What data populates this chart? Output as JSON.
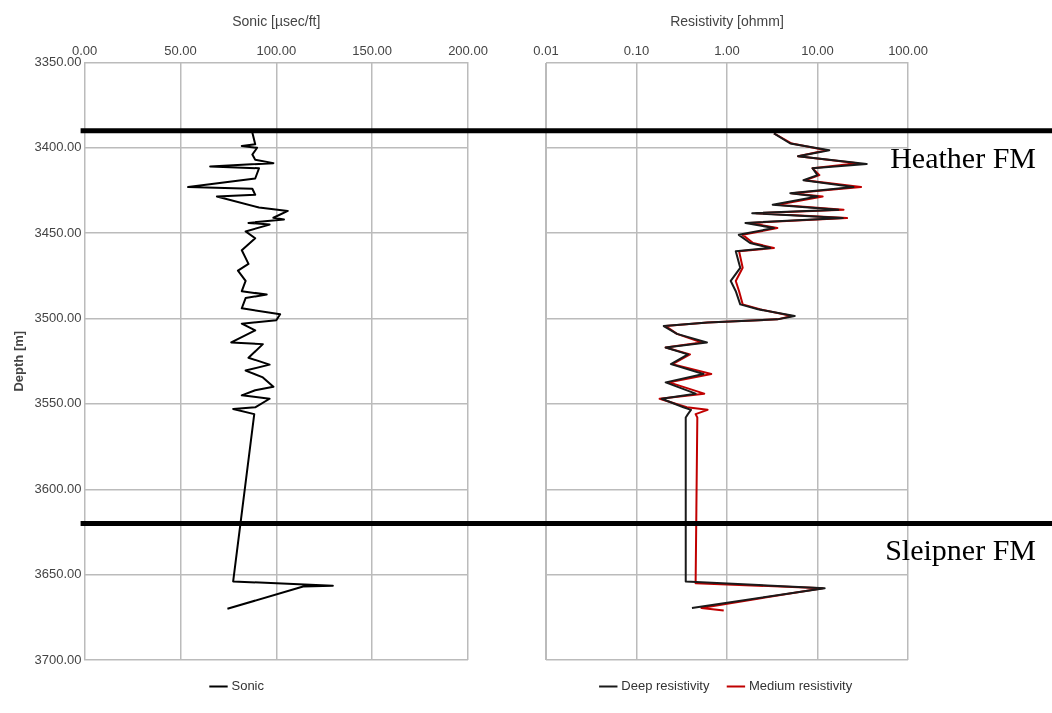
{
  "chart_data": [
    {
      "type": "line",
      "xlabel": "Sonic [µsec/ft]",
      "ylabel": "Depth [m]",
      "xlim": [
        0,
        200
      ],
      "xticks": [
        {
          "value": 0,
          "label": "0.00"
        },
        {
          "value": 50,
          "label": "50.00"
        },
        {
          "value": 100,
          "label": "100.00"
        },
        {
          "value": 150,
          "label": "150.00"
        },
        {
          "value": 200,
          "label": "200.00"
        }
      ],
      "ylim": [
        3700,
        3350
      ],
      "yticks": [
        {
          "value": 3350,
          "label": "3350.00"
        },
        {
          "value": 3400,
          "label": "3400.00"
        },
        {
          "value": 3450,
          "label": "3450.00"
        },
        {
          "value": 3500,
          "label": "3500.00"
        },
        {
          "value": 3550,
          "label": "3550.00"
        },
        {
          "value": 3600,
          "label": "3600.00"
        },
        {
          "value": 3650,
          "label": "3650.00"
        },
        {
          "value": 3700,
          "label": "3700.00"
        }
      ],
      "grid": true,
      "legend": "bottom",
      "ref_lines": [
        {
          "axis": "y",
          "value": 3390,
          "color": "#000000"
        },
        {
          "axis": "y",
          "value": 3620,
          "color": "#000000"
        }
      ],
      "series": [
        {
          "name": "Sonic",
          "color": "#000000",
          "x": [
            87.5,
            89,
            82,
            90,
            87.5,
            89,
            98.5,
            65.5,
            91,
            89,
            54,
            87.5,
            89,
            69,
            91,
            106,
            98.5,
            104,
            85.5,
            96.5,
            84,
            89,
            82,
            85.5,
            80,
            84,
            82,
            95,
            84,
            82,
            102,
            100,
            82,
            89,
            76.5,
            93,
            85.5,
            96.5,
            84,
            93,
            98.5,
            89,
            82,
            96.5,
            89,
            77.5,
            88.5,
            77.5,
            129.5,
            114,
            74.5
          ],
          "values": [
            3391,
            3398,
            3399,
            3400,
            3404,
            3407,
            3409,
            3411,
            3412,
            3418,
            3423,
            3424,
            3427.5,
            3428.5,
            3435,
            3437,
            3441,
            3442,
            3444,
            3445,
            3449,
            3453,
            3460,
            3468,
            3472,
            3478,
            3484,
            3486,
            3488,
            3494,
            3497.5,
            3501,
            3503,
            3507,
            3514,
            3515,
            3523,
            3527,
            3530.5,
            3534.5,
            3540,
            3542,
            3545,
            3547,
            3552,
            3553,
            3556,
            3654,
            3656.5,
            3657,
            3670
          ]
        }
      ]
    },
    {
      "type": "line",
      "xlabel": "Resistivity [ohmm]",
      "log": "x",
      "xlim": [
        0.01,
        100
      ],
      "xticks": [
        {
          "value": 0.01,
          "label": "0.01"
        },
        {
          "value": 0.1,
          "label": "0.10"
        },
        {
          "value": 1,
          "label": "1.00"
        },
        {
          "value": 10,
          "label": "10.00"
        },
        {
          "value": 100,
          "label": "100.00"
        }
      ],
      "ylim": [
        3700,
        3350
      ],
      "yticks": [
        3350,
        3400,
        3450,
        3500,
        3550,
        3600,
        3650,
        3700
      ],
      "tick_labels": "x",
      "grid": true,
      "legend": "bottom",
      "ref_lines": [
        {
          "axis": "y",
          "value": 3390,
          "label": "Heather FM",
          "color": "#000000"
        },
        {
          "axis": "y",
          "value": 3620,
          "label": "Sleipner FM",
          "color": "#000000"
        }
      ],
      "series": [
        {
          "name": "Deep resistivity",
          "color": "#1a1a1a",
          "x": [
            3.3,
            5.0,
            13.5,
            6.1,
            35,
            8.8,
            10,
            7,
            25,
            5,
            10,
            3.2,
            17,
            1.9,
            19,
            1.6,
            3.3,
            1.35,
            1.8,
            3,
            1.25,
            1.4,
            1.1,
            1.25,
            1.4,
            2.2,
            5.6,
            3.6,
            0.61,
            0.2,
            0.28,
            0.6,
            0.21,
            0.37,
            0.24,
            0.55,
            0.21,
            0.45,
            0.19,
            0.33,
            0.4,
            0.37,
            0.35,
            0.35,
            12,
            0.41
          ],
          "values": [
            3391.6,
            3397.5,
            3401.4,
            3405,
            3409.5,
            3412,
            3416,
            3419,
            3423,
            3426.6,
            3428.6,
            3433.4,
            3436.3,
            3438.3,
            3441.2,
            3444,
            3447,
            3451,
            3455.8,
            3458.7,
            3460.6,
            3470.3,
            3478,
            3484,
            3491.7,
            3494.6,
            3498.5,
            3500.5,
            3502.4,
            3504.4,
            3509,
            3514,
            3517,
            3521,
            3526.7,
            3532.5,
            3537.4,
            3544,
            3547,
            3552,
            3553.5,
            3556,
            3558,
            3654,
            3658,
            3669.5
          ]
        },
        {
          "name": "Medium resistivity",
          "color": "#c00000",
          "x": [
            3.3,
            5.2,
            12.5,
            6.1,
            27.7,
            8.8,
            10.5,
            7.3,
            30.3,
            5.2,
            11.4,
            3.6,
            19.4,
            2.1,
            21.2,
            1.78,
            3.6,
            1.49,
            1.94,
            3.3,
            1.36,
            1.49,
            1.25,
            1.36,
            1.49,
            2.3,
            5.2,
            3.6,
            0.61,
            0.21,
            0.28,
            0.52,
            0.21,
            0.39,
            0.25,
            0.67,
            0.23,
            0.56,
            0.18,
            0.36,
            0.61,
            0.45,
            0.47,
            0.45,
            11.4,
            0.52,
            0.92
          ],
          "values": [
            3391.6,
            3397.5,
            3401.4,
            3405,
            3409,
            3412,
            3416,
            3419,
            3423,
            3426.6,
            3428.6,
            3433.4,
            3436.3,
            3438.3,
            3441.2,
            3444,
            3447,
            3451,
            3455.8,
            3458.7,
            3460.6,
            3470.3,
            3478,
            3484,
            3491.7,
            3494.6,
            3498.5,
            3500.5,
            3502.4,
            3504.4,
            3509,
            3514,
            3517,
            3521,
            3526.7,
            3532.5,
            3537.4,
            3544,
            3547,
            3552,
            3553.5,
            3556,
            3558,
            3655,
            3658,
            3669.5,
            3671
          ]
        }
      ]
    }
  ]
}
